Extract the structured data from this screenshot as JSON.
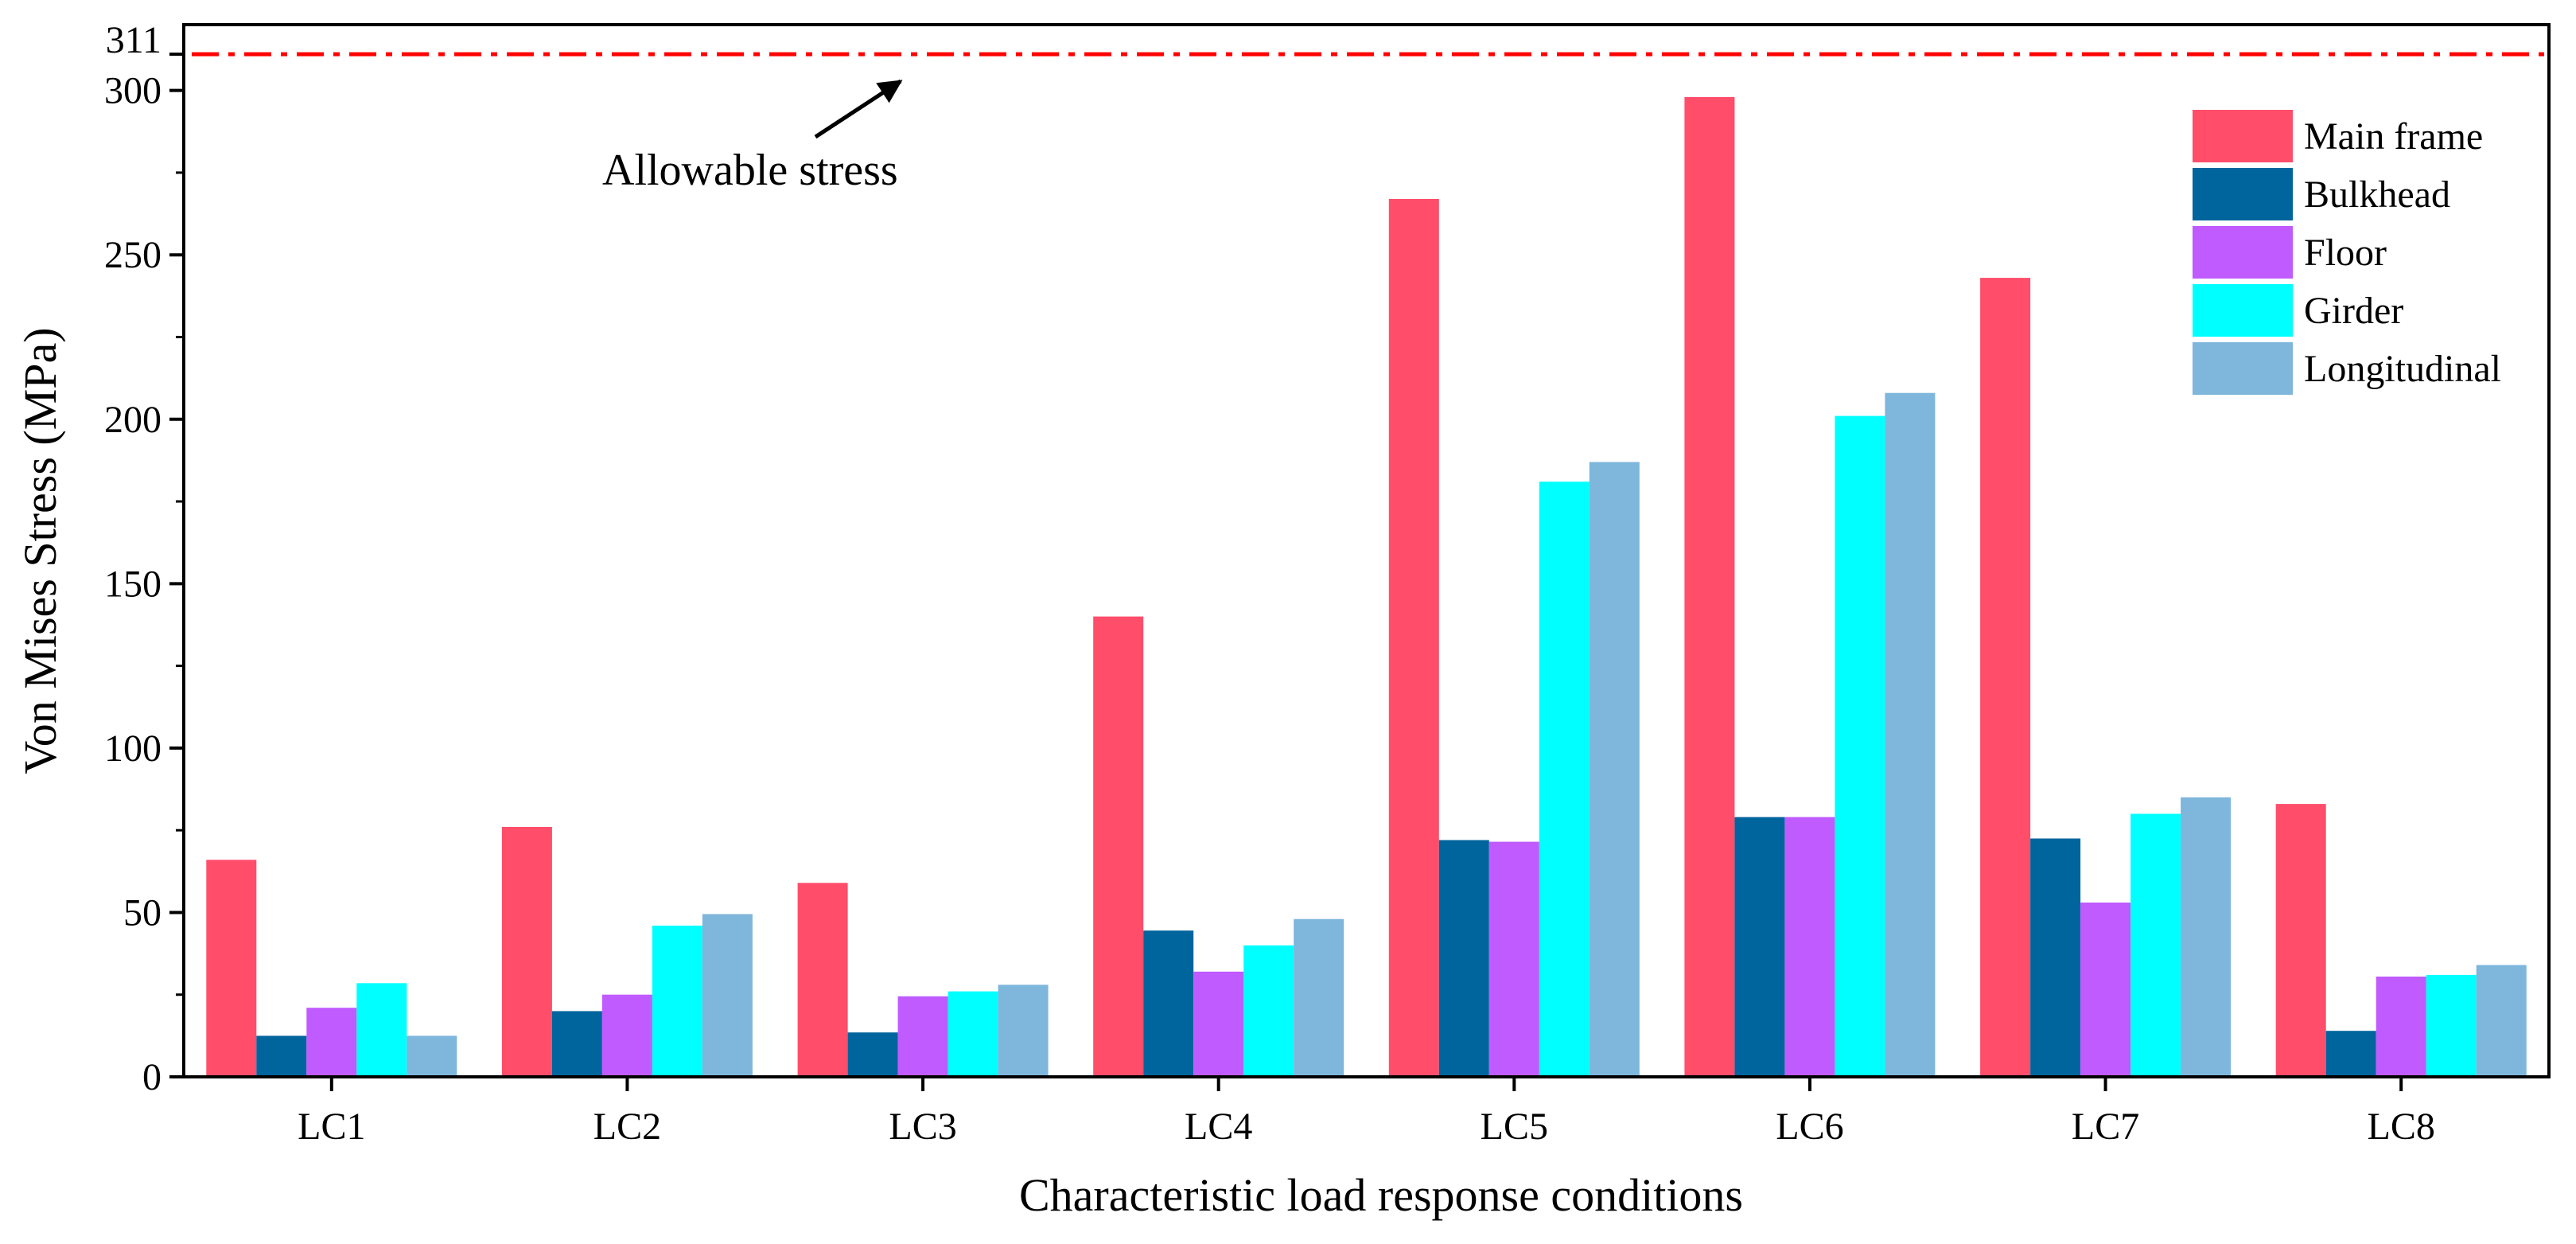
{
  "chart_data": {
    "type": "bar",
    "title": "",
    "xlabel": "Characteristic load response conditions",
    "ylabel": "Von Mises Stress (MPa)",
    "ylim": [
      0,
      320
    ],
    "yticks": [
      0,
      50,
      100,
      150,
      200,
      250,
      300
    ],
    "categories": [
      "LC1",
      "LC2",
      "LC3",
      "LC4",
      "LC5",
      "LC6",
      "LC7",
      "LC8"
    ],
    "series": [
      {
        "name": "Main frame",
        "color": "#ff4d6a",
        "values": [
          66,
          76,
          59,
          140,
          267,
          298,
          243,
          83
        ]
      },
      {
        "name": "Bulkhead",
        "color": "#00649d",
        "values": [
          12.5,
          20,
          13.5,
          44.5,
          72,
          79,
          72.5,
          14
        ]
      },
      {
        "name": "Floor",
        "color": "#bf5bff",
        "values": [
          21,
          25,
          24.5,
          32,
          71.5,
          79,
          53,
          30.5
        ]
      },
      {
        "name": "Girder",
        "color": "#00ffff",
        "values": [
          28.5,
          46,
          26,
          40,
          181,
          201,
          80,
          31
        ]
      },
      {
        "name": "Longitudinal",
        "color": "#7eb6dc",
        "values": [
          12.5,
          49.5,
          28,
          48,
          187,
          208,
          85,
          34
        ]
      }
    ],
    "reference_line": {
      "value": 311,
      "label": "311",
      "color": "#ff0000"
    },
    "annotation": "Allowable stress",
    "legend_position": "top-right"
  }
}
